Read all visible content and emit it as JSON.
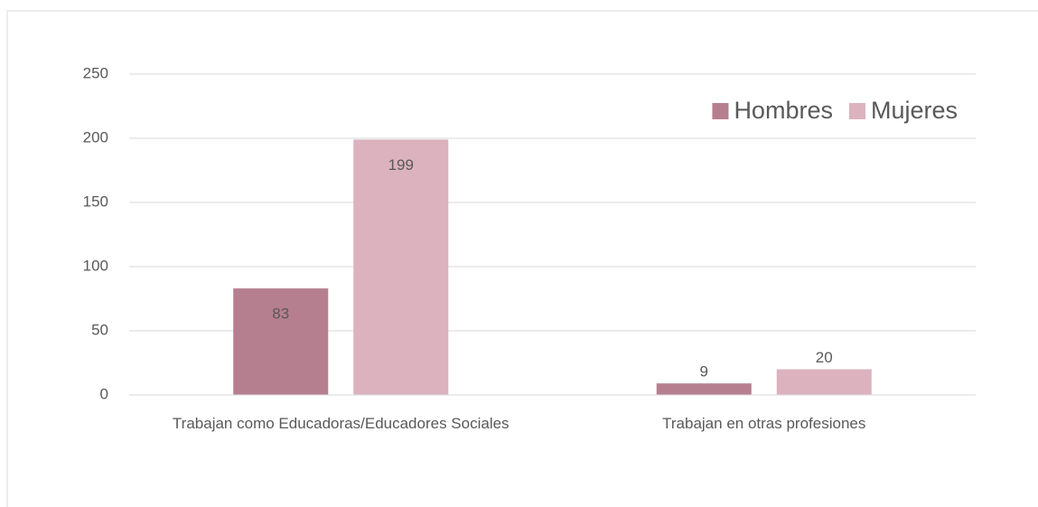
{
  "chart_data": {
    "type": "bar",
    "categories": [
      "Trabajan como Educadoras/Educadores Sociales",
      "Trabajan en otras profesiones"
    ],
    "series": [
      {
        "name": "Hombres",
        "color": "#b67f8f",
        "values": [
          83,
          9
        ]
      },
      {
        "name": "Mujeres",
        "color": "#dcb2bf",
        "values": [
          199,
          20
        ]
      }
    ],
    "ylim": [
      0,
      250
    ],
    "yticks": [
      0,
      50,
      100,
      150,
      200,
      250
    ],
    "grid": true,
    "legend": "top-right"
  }
}
